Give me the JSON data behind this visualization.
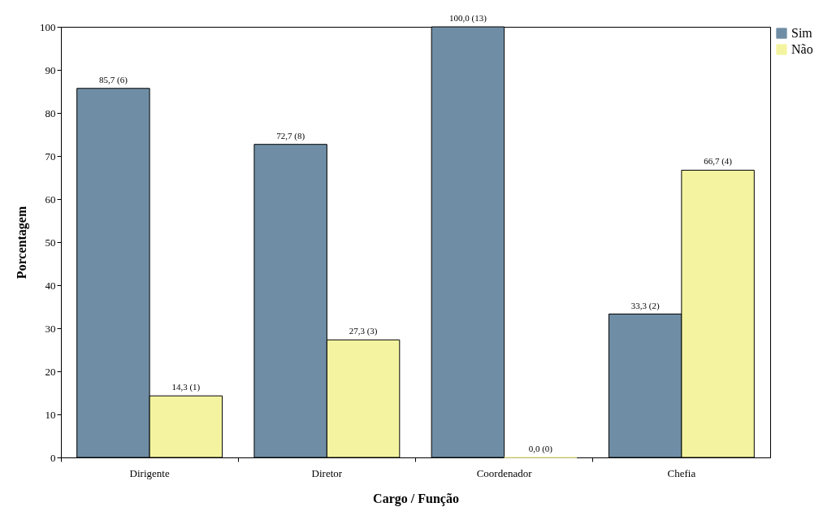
{
  "chart_data": {
    "type": "bar",
    "xlabel": "Cargo / Função",
    "ylabel": "Porcentagem",
    "categories": [
      "Dirigente",
      "Diretor",
      "Coordenador",
      "Chefia"
    ],
    "series": [
      {
        "name": "Sim",
        "color": "#6f8ea6",
        "values": [
          85.7,
          72.7,
          100.0,
          33.3
        ],
        "value_labels": [
          "85,7 (6)",
          "72,7 (8)",
          "100,0 (13)",
          "33,3 (2)"
        ]
      },
      {
        "name": "Não",
        "color": "#f4f4a0",
        "values": [
          14.3,
          27.3,
          0.0,
          66.7
        ],
        "value_labels": [
          "14,3 (1)",
          "27,3 (3)",
          "0,0 (0)",
          "66,7 (4)"
        ]
      }
    ],
    "ylim": [
      0,
      100
    ],
    "yticks": [
      0,
      10,
      20,
      30,
      40,
      50,
      60,
      70,
      80,
      90,
      100
    ],
    "legend": "right"
  }
}
